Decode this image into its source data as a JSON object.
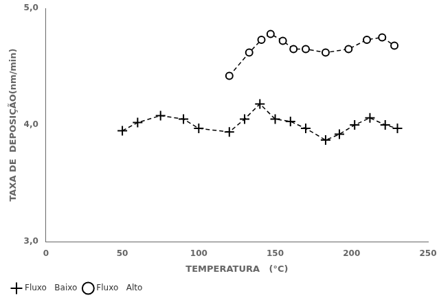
{
  "chart_data": {
    "type": "line",
    "xlabel": "TEMPERATURA   (°C)",
    "ylabel": "TAXA DE  DEPOSIÇÃO(nm/min)",
    "series": [
      {
        "name": "Fluxo   Baixo",
        "color": "black",
        "marker": "plus",
        "line_style": "dashed",
        "x": [
          50,
          60,
          75,
          90,
          100,
          120,
          130,
          140,
          150,
          160,
          170,
          183,
          192,
          202,
          212,
          222,
          230
        ],
        "values": [
          3.95,
          4.02,
          4.08,
          4.05,
          3.97,
          3.94,
          4.05,
          4.18,
          4.05,
          4.03,
          3.97,
          3.87,
          3.92,
          4.0,
          4.06,
          4.0,
          3.97
        ]
      },
      {
        "name": "Fluxo   Alto",
        "color": "black",
        "marker": "circle",
        "line_style": "dashed",
        "x": [
          120,
          133,
          141,
          147,
          155,
          162,
          170,
          183,
          198,
          210,
          220,
          228
        ],
        "values": [
          4.42,
          4.62,
          4.73,
          4.78,
          4.72,
          4.65,
          4.65,
          4.62,
          4.65,
          4.73,
          4.75,
          4.68
        ]
      }
    ],
    "xlim": [
      0,
      250
    ],
    "ylim": [
      3.0,
      5.0
    ],
    "xticks": [
      0,
      50,
      100,
      150,
      200,
      250
    ],
    "yticks": [
      {
        "value": 3.0,
        "label": "3,0"
      },
      {
        "value": 4.0,
        "label": "4,0"
      },
      {
        "value": 5.0,
        "label": "5,0"
      }
    ],
    "grid": false,
    "legend": "lower left"
  }
}
